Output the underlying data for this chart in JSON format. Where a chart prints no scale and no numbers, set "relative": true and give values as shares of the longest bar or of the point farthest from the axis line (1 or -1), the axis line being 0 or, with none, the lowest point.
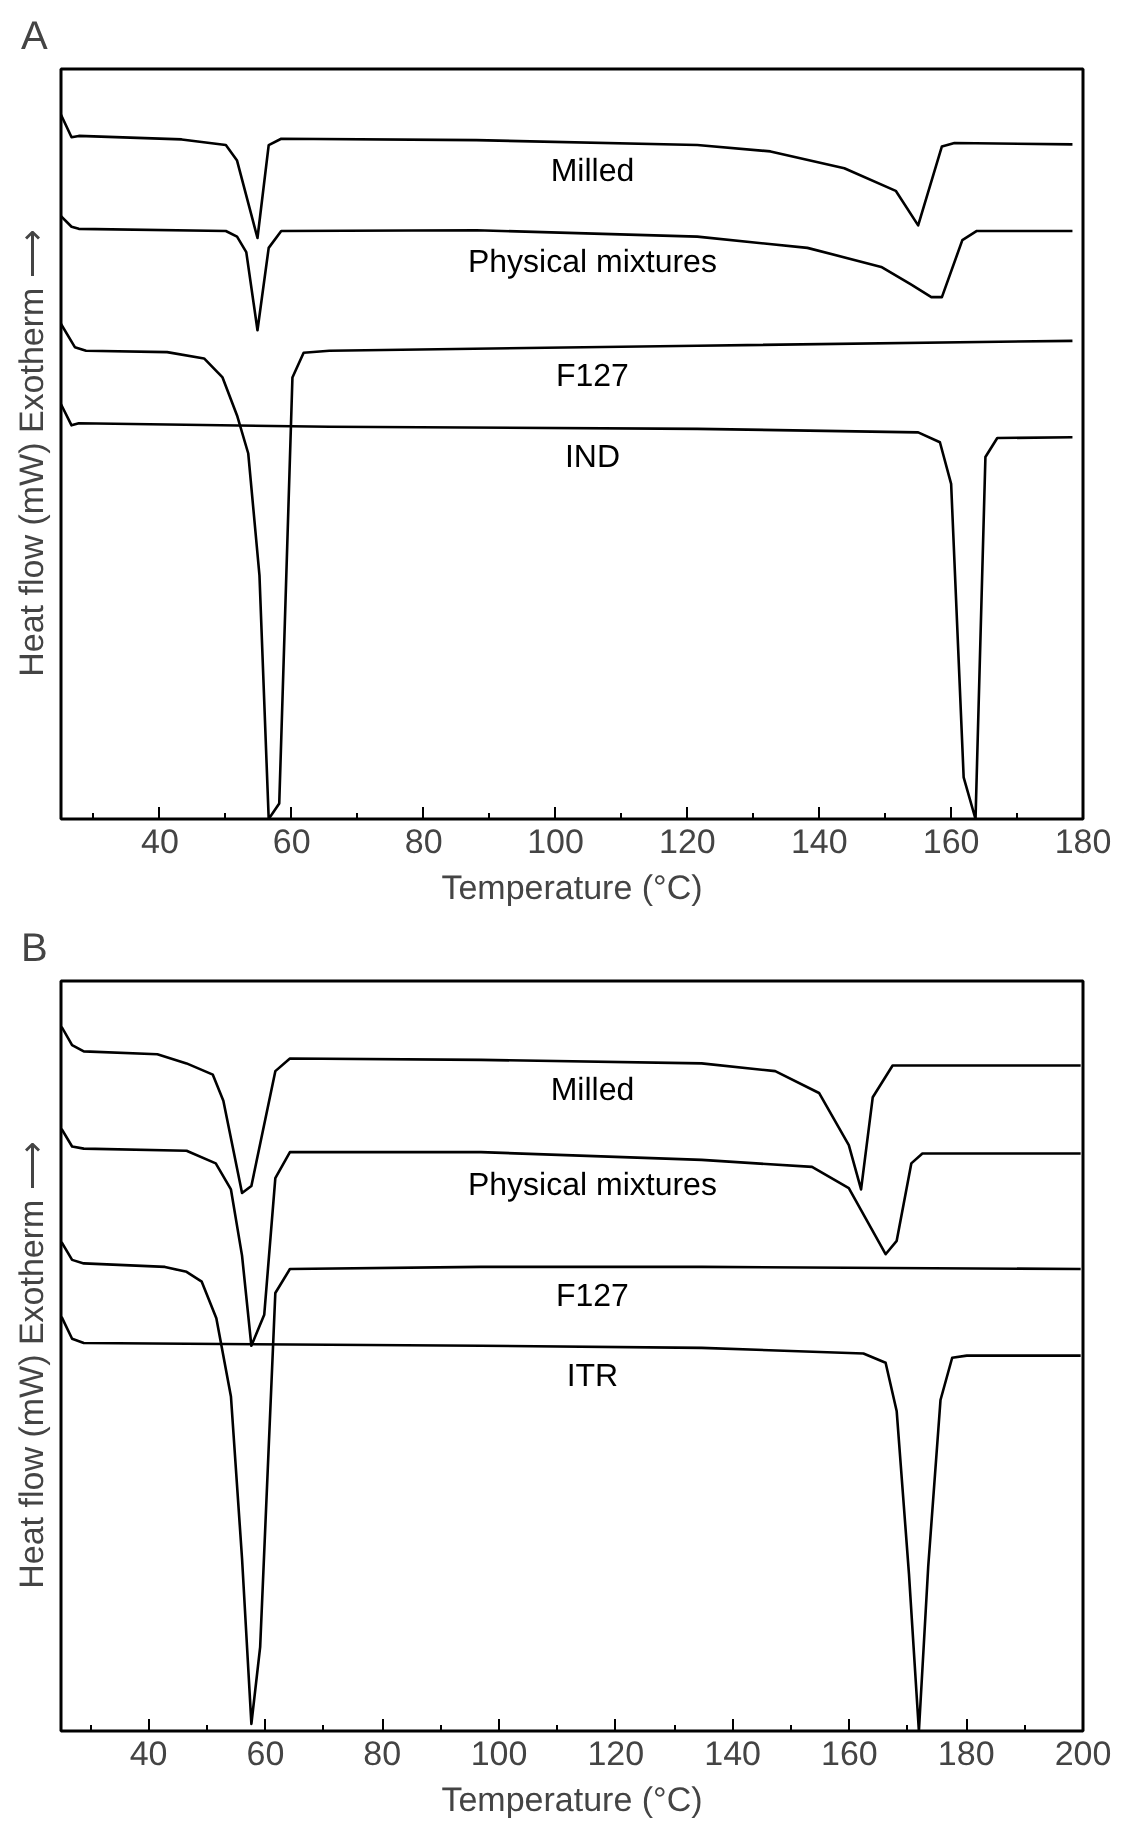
{
  "chart_data": [
    {
      "type": "line",
      "title": "A",
      "xlabel": "Temperature (°C)",
      "ylabel": "Heat flow (mW)   Exotherm ⟶",
      "relative": true,
      "tick_labels": "x",
      "grid": false,
      "legend": false,
      "marker": "none",
      "line_style": "solid",
      "xlim": [
        25,
        180
      ],
      "xticks": [
        {
          "value": 30,
          "label": null
        },
        40,
        {
          "value": 50,
          "label": null
        },
        60,
        {
          "value": 70,
          "label": null
        },
        80,
        {
          "value": 90,
          "label": null
        },
        100,
        {
          "value": 110,
          "label": null
        },
        120,
        {
          "value": 130,
          "label": null
        },
        140,
        {
          "value": 150,
          "label": null
        },
        160,
        {
          "value": 170,
          "label": null
        },
        180
      ],
      "series": [
        {
          "name": "Milled",
          "color": "#000000",
          "x": [
            25.0,
            26.6,
            27.7,
            43.3,
            50.0,
            51.7,
            54.8,
            56.5,
            58.4,
            88.0,
            121.5,
            132.6,
            143.8,
            151.6,
            155.0,
            158.6,
            160.5,
            178.4
          ],
          "values": [
            1.0,
            0.968,
            0.97,
            0.965,
            0.957,
            0.935,
            0.825,
            0.957,
            0.966,
            0.964,
            0.957,
            0.948,
            0.924,
            0.892,
            0.843,
            0.955,
            0.96,
            0.958
          ]
        },
        {
          "name": "Physical mixtures",
          "color": "#000000",
          "x": [
            25.0,
            26.6,
            27.7,
            50.0,
            51.7,
            53.1,
            54.8,
            56.5,
            58.4,
            88.0,
            121.5,
            138.2,
            149.4,
            153.9,
            157.0,
            158.6,
            161.7,
            163.9,
            178.4
          ],
          "values": [
            0.856,
            0.841,
            0.838,
            0.835,
            0.827,
            0.805,
            0.694,
            0.811,
            0.835,
            0.836,
            0.827,
            0.811,
            0.784,
            0.759,
            0.741,
            0.741,
            0.822,
            0.835,
            0.835
          ]
        },
        {
          "name": "F127",
          "color": "#000000",
          "x": [
            25.0,
            27.1,
            28.8,
            41.1,
            46.7,
            49.5,
            51.7,
            53.4,
            55.1,
            56.5,
            58.1,
            60.1,
            61.8,
            65.7,
            121.5,
            178.4
          ],
          "values": [
            0.703,
            0.67,
            0.665,
            0.663,
            0.654,
            0.627,
            0.573,
            0.519,
            0.346,
            0.0,
            0.022,
            0.627,
            0.662,
            0.665,
            0.672,
            0.679
          ]
        },
        {
          "name": "IND",
          "color": "#000000",
          "x": [
            25.0,
            26.6,
            27.7,
            65.7,
            121.5,
            155.0,
            158.3,
            160.0,
            161.9,
            163.7,
            165.2,
            167.0,
            178.4
          ],
          "values": [
            0.589,
            0.559,
            0.562,
            0.557,
            0.554,
            0.549,
            0.535,
            0.476,
            0.059,
            0.0,
            0.514,
            0.541,
            0.542
          ]
        }
      ]
    },
    {
      "type": "line",
      "title": "B",
      "xlabel": "Temperature (°C)",
      "ylabel": "Heat flow (mW)   Exotherm ⟶",
      "relative": true,
      "tick_labels": "x",
      "grid": false,
      "legend": false,
      "marker": "none",
      "line_style": "solid",
      "xlim": [
        25,
        200
      ],
      "xticks": [
        {
          "value": 30,
          "label": null
        },
        40,
        {
          "value": 50,
          "label": null
        },
        60,
        {
          "value": 70,
          "label": null
        },
        80,
        {
          "value": 90,
          "label": null
        },
        100,
        {
          "value": 110,
          "label": null
        },
        120,
        {
          "value": 130,
          "label": null
        },
        140,
        {
          "value": 150,
          "label": null
        },
        160,
        {
          "value": 170,
          "label": null
        },
        180,
        {
          "value": 190,
          "label": null
        },
        200
      ],
      "series": [
        {
          "name": "Milled",
          "color": "#000000",
          "x": [
            25.1,
            26.9,
            28.9,
            41.5,
            46.5,
            51.0,
            52.8,
            56.0,
            57.6,
            61.7,
            64.2,
            96.9,
            134.7,
            147.3,
            154.8,
            159.9,
            162.0,
            164.0,
            167.4,
            199.6
          ],
          "values": [
            1.0,
            0.974,
            0.965,
            0.961,
            0.948,
            0.932,
            0.895,
            0.764,
            0.774,
            0.937,
            0.955,
            0.953,
            0.948,
            0.937,
            0.906,
            0.832,
            0.769,
            0.9,
            0.945,
            0.945
          ]
        },
        {
          "name": "Physical mixtures",
          "color": "#000000",
          "x": [
            25.1,
            26.9,
            28.9,
            46.5,
            51.5,
            54.1,
            56.0,
            57.6,
            59.8,
            61.7,
            64.2,
            96.9,
            134.7,
            153.6,
            159.9,
            166.2,
            168.1,
            170.6,
            172.5,
            199.6
          ],
          "values": [
            0.855,
            0.83,
            0.827,
            0.824,
            0.806,
            0.769,
            0.675,
            0.547,
            0.591,
            0.785,
            0.822,
            0.822,
            0.811,
            0.801,
            0.771,
            0.677,
            0.696,
            0.806,
            0.82,
            0.82
          ]
        },
        {
          "name": "F127",
          "color": "#000000",
          "x": [
            25.1,
            26.9,
            28.9,
            42.8,
            46.5,
            49.1,
            51.6,
            54.1,
            56.0,
            57.6,
            59.1,
            61.7,
            64.2,
            96.9,
            134.7,
            199.6
          ],
          "values": [
            0.694,
            0.669,
            0.664,
            0.659,
            0.652,
            0.638,
            0.586,
            0.475,
            0.245,
            0.01,
            0.119,
            0.622,
            0.656,
            0.659,
            0.659,
            0.656
          ]
        },
        {
          "name": "ITR",
          "color": "#000000",
          "x": [
            25.1,
            26.9,
            28.9,
            96.9,
            134.7,
            162.4,
            166.2,
            168.1,
            170.2,
            171.9,
            173.5,
            175.6,
            177.6,
            180.1,
            199.6
          ],
          "values": [
            0.588,
            0.557,
            0.551,
            0.547,
            0.544,
            0.536,
            0.523,
            0.454,
            0.223,
            0.0,
            0.234,
            0.47,
            0.53,
            0.533,
            0.533
          ]
        }
      ]
    }
  ]
}
